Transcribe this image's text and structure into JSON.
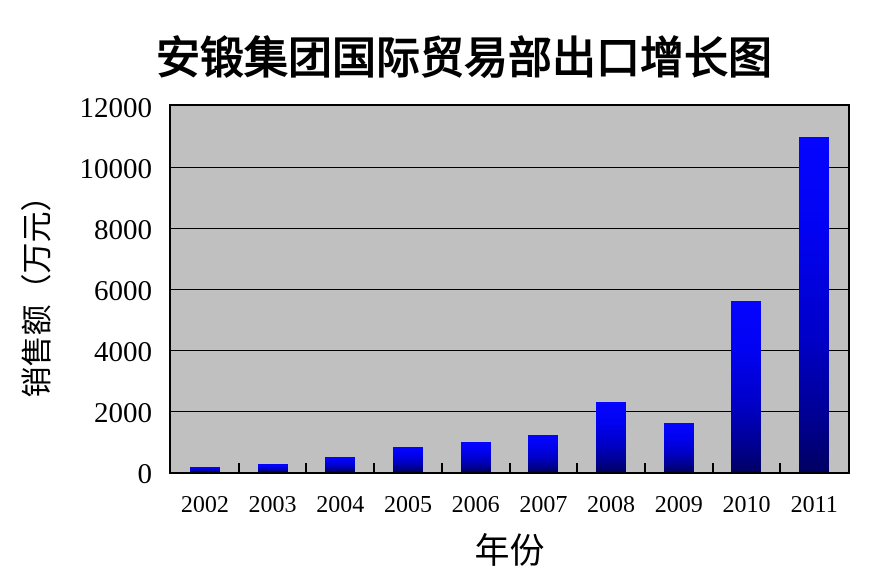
{
  "chart_data": {
    "type": "bar",
    "title": "安锻集团国际贸易部出口增长图",
    "xlabel": "年份",
    "ylabel": "销售额（万元）",
    "categories": [
      "2002",
      "2003",
      "2004",
      "2005",
      "2006",
      "2007",
      "2008",
      "2009",
      "2010",
      "2011"
    ],
    "values": [
      150,
      250,
      500,
      830,
      1000,
      1200,
      2300,
      1600,
      5600,
      11000
    ],
    "ylim": [
      0,
      12000
    ],
    "ytick_interval": 2000,
    "yticks": [
      "0",
      "2000",
      "4000",
      "6000",
      "8000",
      "10000",
      "12000"
    ],
    "legend": "none",
    "grid": "horizontal",
    "colors": {
      "plot_background": "#c0c0c0",
      "bar_top": "#0505ff",
      "bar_bottom": "#000063",
      "gridline": "#000000",
      "text": "#000000",
      "page_background": "#ffffff"
    }
  }
}
